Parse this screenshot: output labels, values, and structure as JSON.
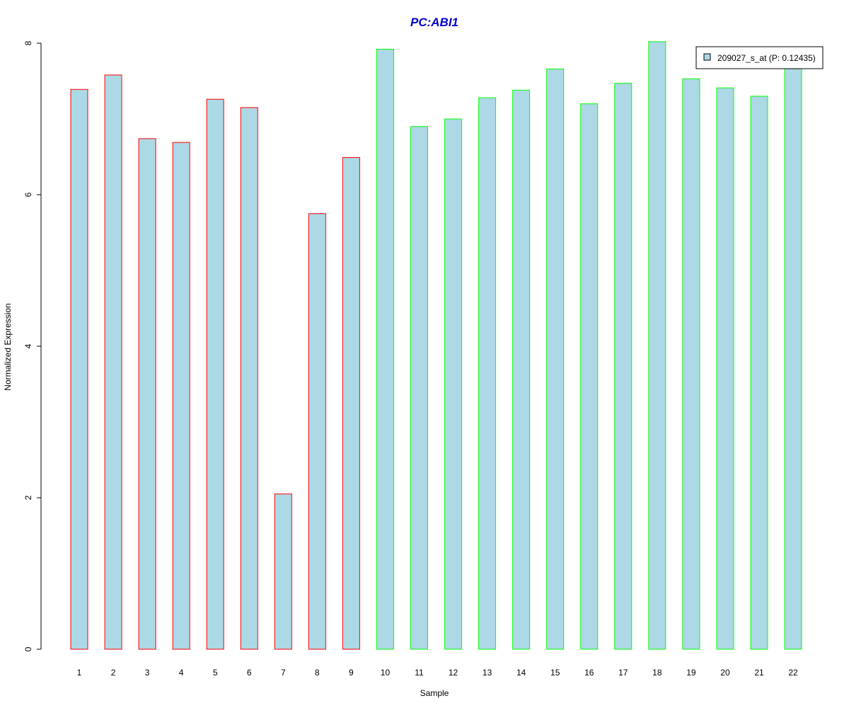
{
  "chart_data": {
    "type": "bar",
    "title": "PC:ABI1",
    "xlabel": "Sample",
    "ylabel": "Normalized Expression",
    "categories": [
      "1",
      "2",
      "3",
      "4",
      "5",
      "6",
      "7",
      "8",
      "9",
      "10",
      "11",
      "12",
      "13",
      "14",
      "15",
      "16",
      "17",
      "18",
      "19",
      "20",
      "21",
      "22"
    ],
    "values": [
      7.39,
      7.58,
      6.74,
      6.69,
      7.26,
      7.15,
      2.05,
      5.75,
      6.49,
      7.92,
      6.9,
      7.0,
      7.28,
      7.38,
      7.66,
      7.2,
      7.47,
      8.02,
      7.53,
      7.41,
      7.3,
      7.95
    ],
    "groups": [
      "red",
      "red",
      "red",
      "red",
      "red",
      "red",
      "red",
      "red",
      "red",
      "green",
      "green",
      "green",
      "green",
      "green",
      "green",
      "green",
      "green",
      "green",
      "green",
      "green",
      "green",
      "green"
    ],
    "ylim": [
      0,
      8
    ],
    "yticks": [
      0,
      2,
      4,
      6,
      8
    ],
    "grid": false,
    "legend": {
      "position": "top-right",
      "entries": [
        "209027_s_at (P: 0.12435)"
      ]
    },
    "colors": {
      "bar_fill": "#add8e6",
      "group_red_border": "#ff0000",
      "group_green_border": "#00ff00",
      "title": "#0000cc",
      "axis": "#000000"
    }
  }
}
